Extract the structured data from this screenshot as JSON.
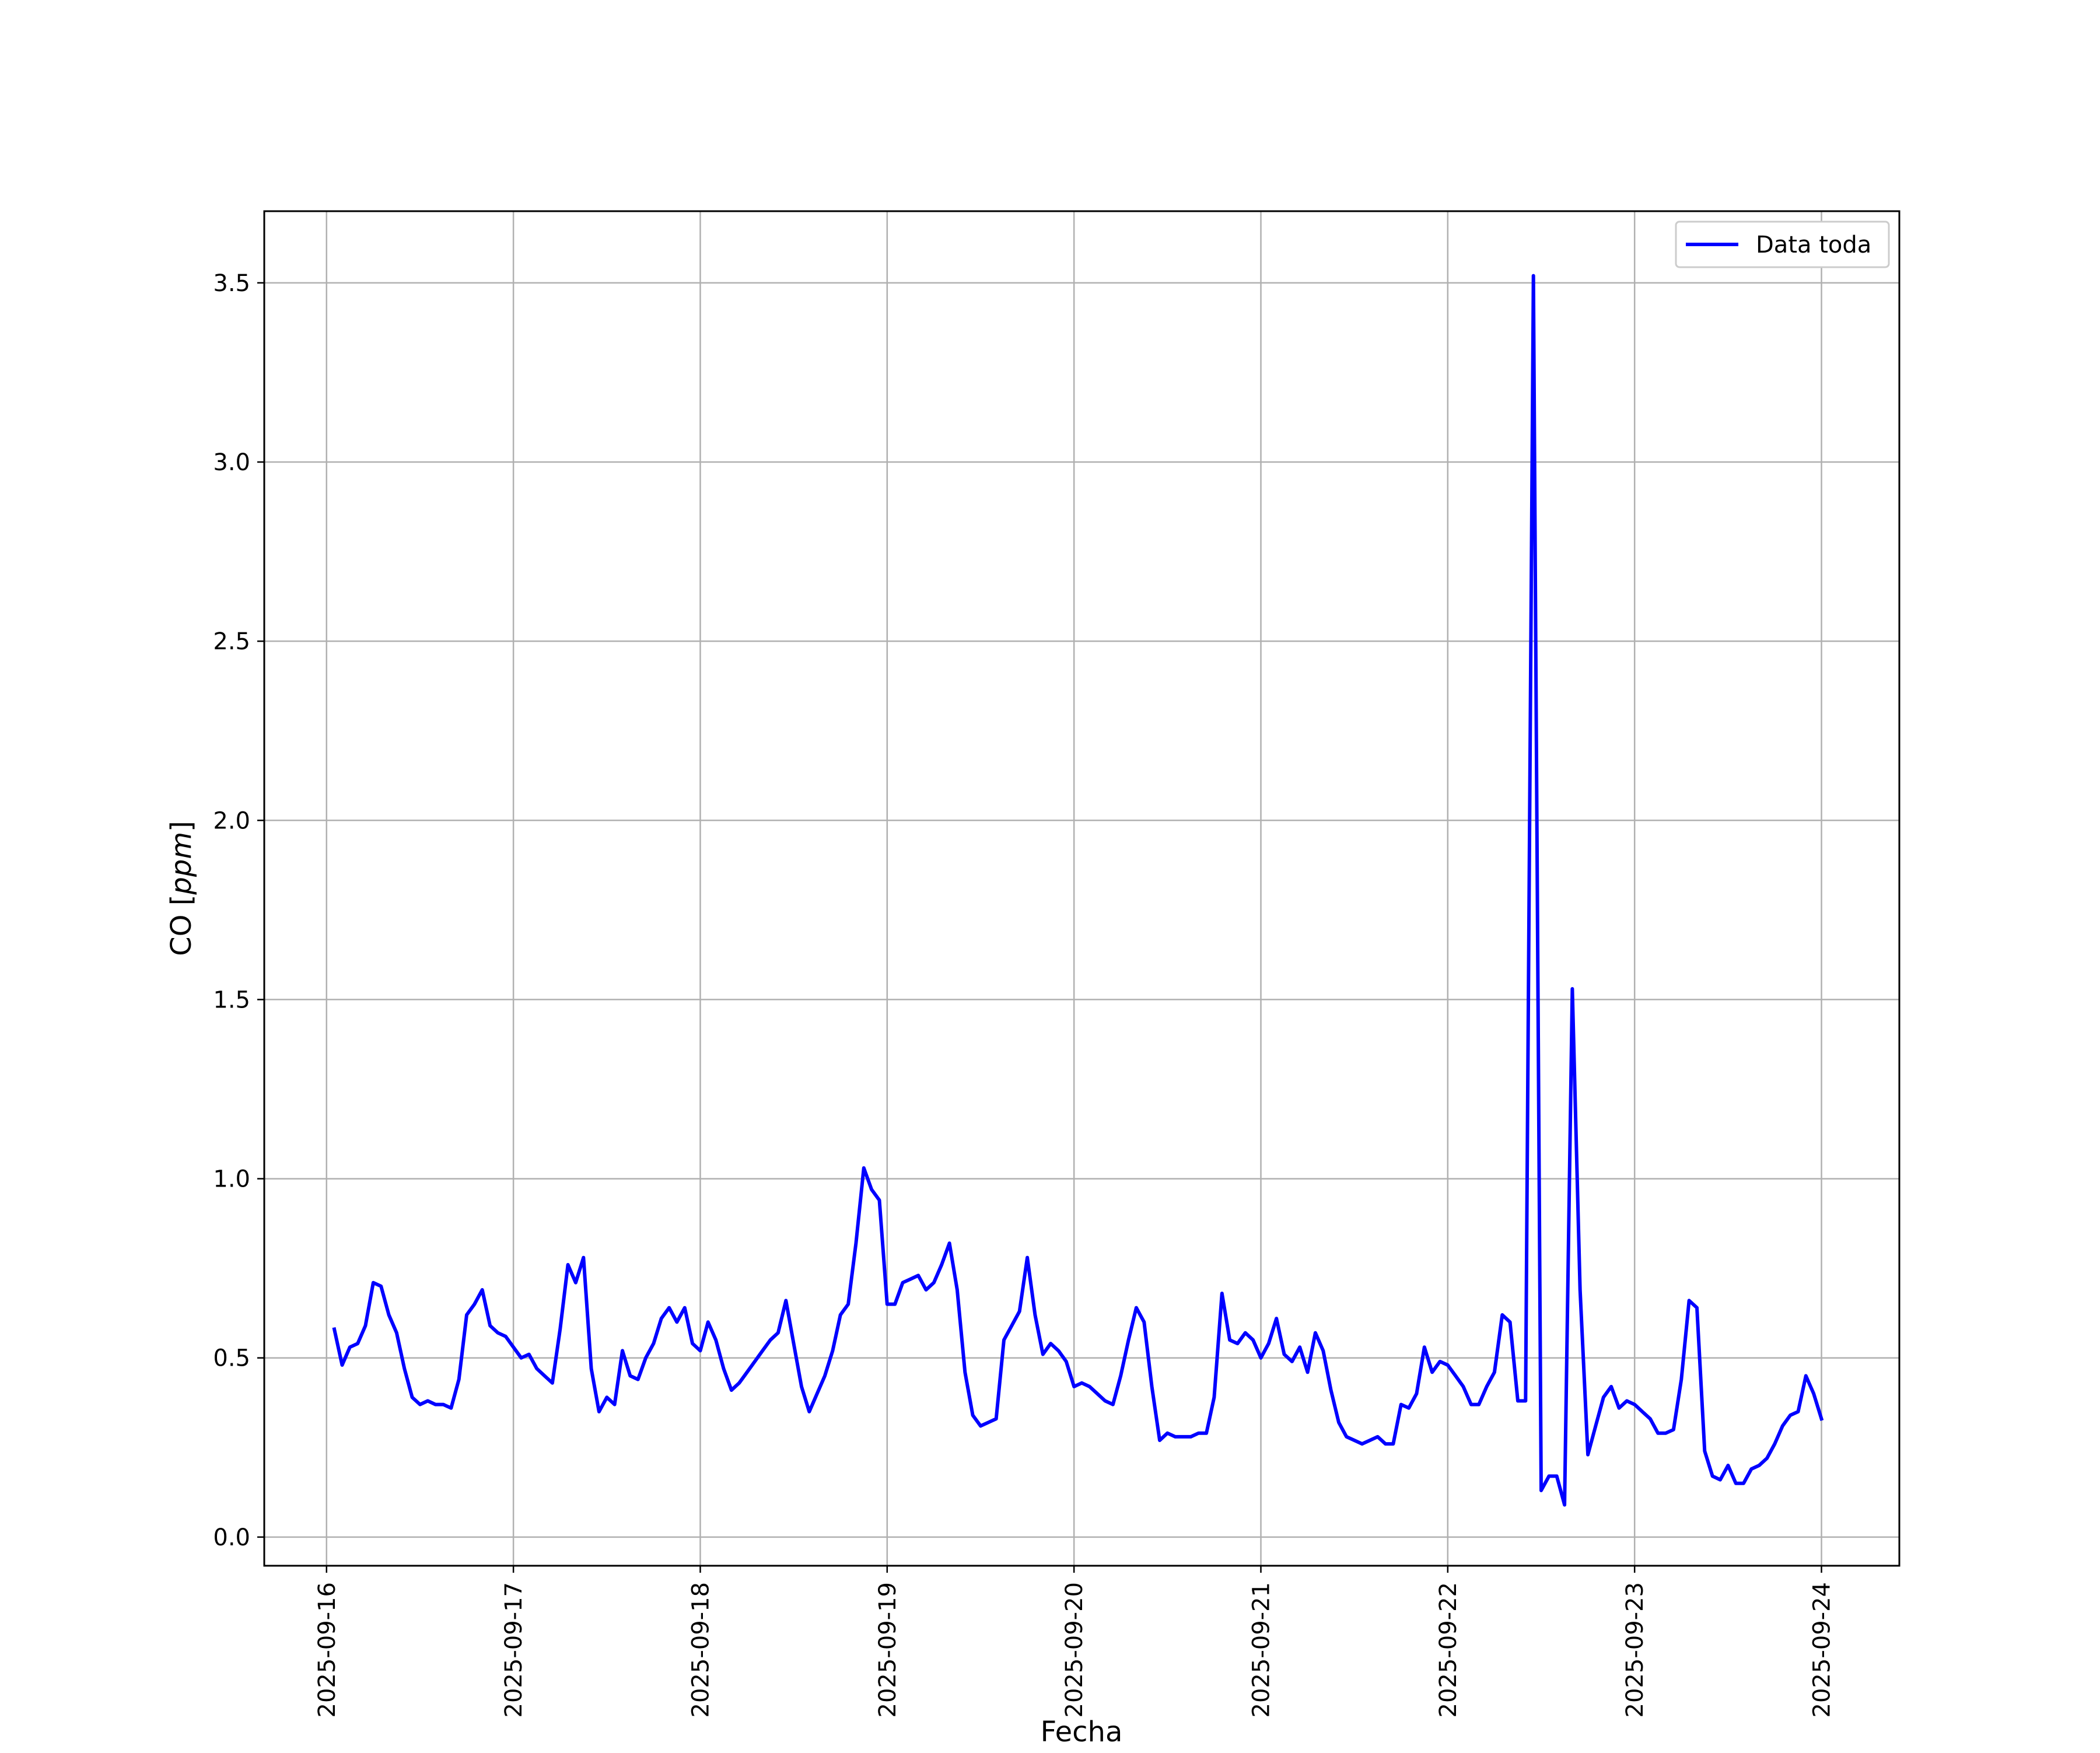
{
  "chart_data": {
    "type": "line",
    "title": "",
    "xlabel": "Fecha",
    "ylabel_main": "CO",
    "ylabel_unit": "ppm",
    "xlim": [
      "2025-09-15T16:00",
      "2025-09-24T10:00"
    ],
    "ylim": [
      -0.08,
      3.7
    ],
    "yticks": [
      0.0,
      0.5,
      1.0,
      1.5,
      2.0,
      2.5,
      3.0,
      3.5
    ],
    "ytick_labels": [
      "0.0",
      "0.5",
      "1.0",
      "1.5",
      "2.0",
      "2.5",
      "3.0",
      "3.5"
    ],
    "xticks": [
      "2025-09-16",
      "2025-09-17",
      "2025-09-18",
      "2025-09-19",
      "2025-09-20",
      "2025-09-21",
      "2025-09-22",
      "2025-09-23",
      "2025-09-24"
    ],
    "grid": true,
    "legend_position": "top-right",
    "series": [
      {
        "name": "Data toda",
        "color": "#0000ff",
        "x": [
          "2025-09-16T01:00",
          "2025-09-16T02:00",
          "2025-09-16T03:00",
          "2025-09-16T04:00",
          "2025-09-16T05:00",
          "2025-09-16T06:00",
          "2025-09-16T07:00",
          "2025-09-16T08:00",
          "2025-09-16T09:00",
          "2025-09-16T10:00",
          "2025-09-16T11:00",
          "2025-09-16T12:00",
          "2025-09-16T13:00",
          "2025-09-16T14:00",
          "2025-09-16T15:00",
          "2025-09-16T16:00",
          "2025-09-16T17:00",
          "2025-09-16T18:00",
          "2025-09-16T19:00",
          "2025-09-16T20:00",
          "2025-09-16T21:00",
          "2025-09-16T22:00",
          "2025-09-16T23:00",
          "2025-09-17T00:00",
          "2025-09-17T01:00",
          "2025-09-17T02:00",
          "2025-09-17T03:00",
          "2025-09-17T04:00",
          "2025-09-17T05:00",
          "2025-09-17T06:00",
          "2025-09-17T07:00",
          "2025-09-17T08:00",
          "2025-09-17T09:00",
          "2025-09-17T10:00",
          "2025-09-17T11:00",
          "2025-09-17T12:00",
          "2025-09-17T13:00",
          "2025-09-17T14:00",
          "2025-09-17T15:00",
          "2025-09-17T16:00",
          "2025-09-17T17:00",
          "2025-09-17T18:00",
          "2025-09-17T19:00",
          "2025-09-17T20:00",
          "2025-09-17T21:00",
          "2025-09-17T22:00",
          "2025-09-17T23:00",
          "2025-09-18T00:00",
          "2025-09-18T01:00",
          "2025-09-18T02:00",
          "2025-09-18T03:00",
          "2025-09-18T04:00",
          "2025-09-18T05:00",
          "2025-09-18T06:00",
          "2025-09-18T07:00",
          "2025-09-18T08:00",
          "2025-09-18T09:00",
          "2025-09-18T10:00",
          "2025-09-18T11:00",
          "2025-09-18T12:00",
          "2025-09-18T13:00",
          "2025-09-18T14:00",
          "2025-09-18T15:00",
          "2025-09-18T16:00",
          "2025-09-18T17:00",
          "2025-09-18T18:00",
          "2025-09-18T19:00",
          "2025-09-18T20:00",
          "2025-09-18T21:00",
          "2025-09-18T22:00",
          "2025-09-18T23:00",
          "2025-09-19T00:00",
          "2025-09-19T01:00",
          "2025-09-19T02:00",
          "2025-09-19T03:00",
          "2025-09-19T04:00",
          "2025-09-19T05:00",
          "2025-09-19T06:00",
          "2025-09-19T07:00",
          "2025-09-19T08:00",
          "2025-09-19T09:00",
          "2025-09-19T10:00",
          "2025-09-19T11:00",
          "2025-09-19T12:00",
          "2025-09-19T13:00",
          "2025-09-19T14:00",
          "2025-09-19T15:00",
          "2025-09-19T16:00",
          "2025-09-19T17:00",
          "2025-09-19T18:00",
          "2025-09-19T19:00",
          "2025-09-19T20:00",
          "2025-09-19T21:00",
          "2025-09-19T22:00",
          "2025-09-19T23:00",
          "2025-09-20T00:00",
          "2025-09-20T01:00",
          "2025-09-20T02:00",
          "2025-09-20T03:00",
          "2025-09-20T04:00",
          "2025-09-20T05:00",
          "2025-09-20T06:00",
          "2025-09-20T07:00",
          "2025-09-20T08:00",
          "2025-09-20T09:00",
          "2025-09-20T10:00",
          "2025-09-20T11:00",
          "2025-09-20T12:00",
          "2025-09-20T13:00",
          "2025-09-20T14:00",
          "2025-09-20T15:00",
          "2025-09-20T16:00",
          "2025-09-20T17:00",
          "2025-09-20T18:00",
          "2025-09-20T19:00",
          "2025-09-20T20:00",
          "2025-09-20T21:00",
          "2025-09-20T22:00",
          "2025-09-20T23:00",
          "2025-09-21T00:00",
          "2025-09-21T01:00",
          "2025-09-21T02:00",
          "2025-09-21T03:00",
          "2025-09-21T04:00",
          "2025-09-21T05:00",
          "2025-09-21T06:00",
          "2025-09-21T07:00",
          "2025-09-21T08:00",
          "2025-09-21T09:00",
          "2025-09-21T10:00",
          "2025-09-21T11:00",
          "2025-09-21T12:00",
          "2025-09-21T13:00",
          "2025-09-21T14:00",
          "2025-09-21T15:00",
          "2025-09-21T16:00",
          "2025-09-21T17:00",
          "2025-09-21T18:00",
          "2025-09-21T19:00",
          "2025-09-21T20:00",
          "2025-09-21T21:00",
          "2025-09-21T22:00",
          "2025-09-21T23:00",
          "2025-09-22T00:00",
          "2025-09-22T01:00",
          "2025-09-22T02:00",
          "2025-09-22T03:00",
          "2025-09-22T04:00",
          "2025-09-22T05:00",
          "2025-09-22T06:00",
          "2025-09-22T07:00",
          "2025-09-22T08:00",
          "2025-09-22T09:00",
          "2025-09-22T10:00",
          "2025-09-22T11:00",
          "2025-09-22T12:00",
          "2025-09-22T13:00",
          "2025-09-22T14:00",
          "2025-09-22T15:00",
          "2025-09-22T16:00",
          "2025-09-22T17:00",
          "2025-09-22T18:00",
          "2025-09-22T19:00",
          "2025-09-22T20:00",
          "2025-09-22T21:00",
          "2025-09-22T22:00",
          "2025-09-22T23:00",
          "2025-09-23T00:00",
          "2025-09-23T01:00",
          "2025-09-23T02:00",
          "2025-09-23T03:00",
          "2025-09-23T04:00",
          "2025-09-23T05:00",
          "2025-09-23T06:00",
          "2025-09-23T07:00",
          "2025-09-23T08:00",
          "2025-09-23T09:00",
          "2025-09-23T10:00",
          "2025-09-23T11:00",
          "2025-09-23T12:00",
          "2025-09-23T13:00",
          "2025-09-23T14:00",
          "2025-09-23T15:00",
          "2025-09-23T16:00",
          "2025-09-23T17:00",
          "2025-09-23T18:00",
          "2025-09-23T19:00",
          "2025-09-23T20:00",
          "2025-09-23T21:00",
          "2025-09-23T22:00",
          "2025-09-23T23:00",
          "2025-09-24T00:00"
        ],
        "y": [
          0.58,
          0.48,
          0.53,
          0.54,
          0.59,
          0.71,
          0.7,
          0.62,
          0.57,
          0.47,
          0.39,
          0.37,
          0.38,
          0.37,
          0.37,
          0.36,
          0.44,
          0.62,
          0.65,
          0.69,
          0.59,
          0.57,
          0.56,
          0.53,
          0.5,
          0.51,
          0.47,
          0.45,
          0.43,
          0.58,
          0.76,
          0.71,
          0.78,
          0.47,
          0.35,
          0.39,
          0.37,
          0.52,
          0.45,
          0.44,
          0.5,
          0.54,
          0.61,
          0.64,
          0.6,
          0.64,
          0.54,
          0.52,
          0.6,
          0.55,
          0.47,
          0.41,
          0.43,
          0.46,
          0.49,
          0.52,
          0.55,
          0.57,
          0.66,
          0.54,
          0.42,
          0.35,
          0.4,
          0.45,
          0.52,
          0.62,
          0.65,
          0.82,
          1.03,
          0.97,
          0.94,
          0.65,
          0.65,
          0.71,
          0.72,
          0.73,
          0.69,
          0.71,
          0.76,
          0.82,
          0.69,
          0.46,
          0.34,
          0.31,
          0.32,
          0.33,
          0.55,
          0.59,
          0.63,
          0.78,
          0.62,
          0.51,
          0.54,
          0.52,
          0.49,
          0.42,
          0.43,
          0.42,
          0.4,
          0.38,
          0.37,
          0.45,
          0.55,
          0.64,
          0.6,
          0.42,
          0.27,
          0.29,
          0.28,
          0.28,
          0.28,
          0.29,
          0.29,
          0.39,
          0.68,
          0.55,
          0.54,
          0.57,
          0.55,
          0.5,
          0.54,
          0.61,
          0.51,
          0.49,
          0.53,
          0.46,
          0.57,
          0.52,
          0.41,
          0.32,
          0.28,
          0.27,
          0.26,
          0.27,
          0.28,
          0.26,
          0.26,
          0.37,
          0.36,
          0.4,
          0.53,
          0.46,
          0.49,
          0.48,
          0.45,
          0.42,
          0.37,
          0.37,
          0.42,
          0.46,
          0.62,
          0.6,
          0.38,
          0.38,
          3.52,
          0.13,
          0.17,
          0.17,
          0.09,
          1.53,
          0.69,
          0.23,
          0.31,
          0.39,
          0.42,
          0.36,
          0.38,
          0.37,
          0.35,
          0.33,
          0.29,
          0.29,
          0.3,
          0.44,
          0.66,
          0.64,
          0.24,
          0.17,
          0.16,
          0.2,
          0.15,
          0.15,
          0.19,
          0.2,
          0.22,
          0.26,
          0.31,
          0.34,
          0.35,
          0.45,
          0.4,
          0.33
        ]
      }
    ]
  }
}
